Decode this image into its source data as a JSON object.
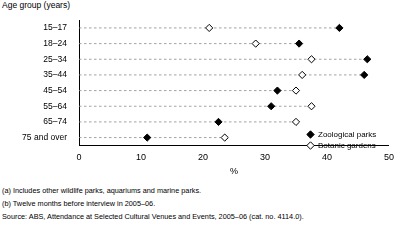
{
  "chart_data": {
    "type": "dot",
    "orientation": "horizontal",
    "y_label": "Age group (years)",
    "x_label": "%",
    "categories": [
      "15–17",
      "18–24",
      "25–34",
      "35–44",
      "45–54",
      "55–64",
      "65–74",
      "75 and over"
    ],
    "series": [
      {
        "name": "Zoological parks",
        "color": "#000000",
        "marker": "diamond",
        "values": [
          42,
          35.5,
          46.5,
          46,
          32,
          31,
          22.5,
          11
        ]
      },
      {
        "name": "Botanic gardens",
        "color": "#000000",
        "marker": "diamond-open",
        "values": [
          21,
          28.5,
          37.5,
          36,
          35,
          37.5,
          35,
          23.5
        ]
      }
    ],
    "xlim": [
      0,
      50
    ],
    "xticks": [
      0,
      10,
      20,
      30,
      40,
      50
    ],
    "grid": false,
    "legend": "lower right",
    "notes": [
      "(a) Includes other wildlife parks, aquariums and marine parks.",
      "(b) Twelve months before interview in 2005–06.",
      "Source: ABS, Attendance at Selected Cultural Venues and Events, 2005–06 (cat. no. 4114.0)."
    ]
  }
}
